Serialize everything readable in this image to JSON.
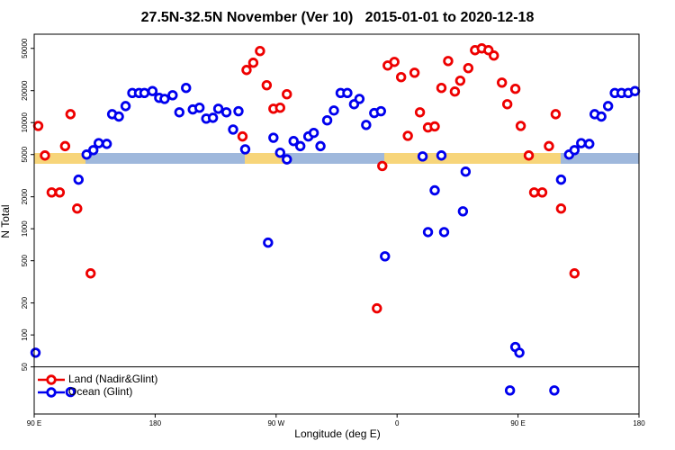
{
  "chart_data": {
    "type": "scatter",
    "title": "27.5N-32.5N November (Ver 10)   2015-01-01 to 2020-12-18",
    "x_label": "Longitude (deg E)",
    "y_label": "N Total",
    "xlim": [
      90,
      540
    ],
    "xticks": [
      {
        "value": 90,
        "label": "90 E"
      },
      180,
      {
        "value": 270,
        "label": "90 W"
      },
      {
        "value": 360,
        "label": "0"
      },
      {
        "value": 450,
        "label": "90 E"
      },
      {
        "value": 540,
        "label": "180"
      }
    ],
    "ylim": [
      18,
      68000
    ],
    "log_y": true,
    "yticks": [
      50,
      100,
      200,
      500,
      1000,
      2000,
      5000,
      10000,
      20000,
      50000
    ],
    "legend": "bottom-left",
    "series": [
      {
        "name": "Land (Nadir&Glint)",
        "color": "#ee0000",
        "x": [
          93,
          98,
          103,
          109,
          113,
          117,
          122,
          132,
          245,
          248,
          253,
          258,
          263,
          268,
          273,
          278,
          345,
          349,
          353,
          358,
          363,
          368,
          373,
          377,
          383,
          388,
          393,
          398,
          403,
          407,
          413,
          418,
          423,
          428,
          432,
          438,
          442,
          448,
          452,
          458,
          462,
          468,
          473,
          478,
          482,
          492
        ],
        "values": [
          9300,
          4900,
          2200,
          2200,
          6000,
          12000,
          1550,
          380,
          7400,
          31300,
          36600,
          47200,
          22500,
          13500,
          13800,
          18500,
          178,
          3900,
          34500,
          37300,
          26800,
          7500,
          29500,
          12500,
          9000,
          9200,
          21200,
          38000,
          19600,
          24800,
          32600,
          48100,
          50000,
          48100,
          42800,
          23800,
          14900,
          20800,
          9300,
          4900,
          2200,
          2200,
          6000,
          12000,
          1550,
          380
        ]
      },
      {
        "name": "Ocean (Glint)",
        "color": "#0000ee",
        "x": [
          91,
          117,
          123,
          129,
          134,
          138,
          144,
          148,
          153,
          158,
          163,
          168,
          172,
          178,
          183,
          187,
          193,
          198,
          203,
          208,
          213,
          218,
          223,
          227,
          233,
          238,
          242,
          247,
          264,
          268,
          273,
          278,
          283,
          288,
          294,
          298,
          303,
          308,
          313,
          318,
          323,
          328,
          332,
          337,
          343,
          348,
          351,
          379,
          383,
          388,
          393,
          395,
          409,
          411,
          444,
          448,
          451,
          477,
          482,
          488,
          492,
          497,
          503,
          507,
          512,
          517,
          522,
          527,
          532,
          537
        ],
        "values": [
          68,
          29,
          2900,
          5000,
          5500,
          6400,
          6300,
          12000,
          11400,
          14300,
          19000,
          19000,
          19000,
          19800,
          17100,
          16700,
          18100,
          12500,
          21200,
          13300,
          13800,
          10900,
          11100,
          13500,
          12500,
          8600,
          12800,
          5600,
          740,
          7200,
          5200,
          4500,
          6700,
          6000,
          7400,
          8000,
          6000,
          10500,
          13000,
          19000,
          19000,
          14900,
          16700,
          9500,
          12300,
          12800,
          550,
          4800,
          930,
          2300,
          4900,
          930,
          1460,
          3450,
          30,
          77,
          68,
          30,
          2900,
          5000,
          5500,
          6400,
          6300,
          12000,
          11400,
          14300,
          19000,
          19000,
          19000,
          19800
        ]
      }
    ]
  }
}
